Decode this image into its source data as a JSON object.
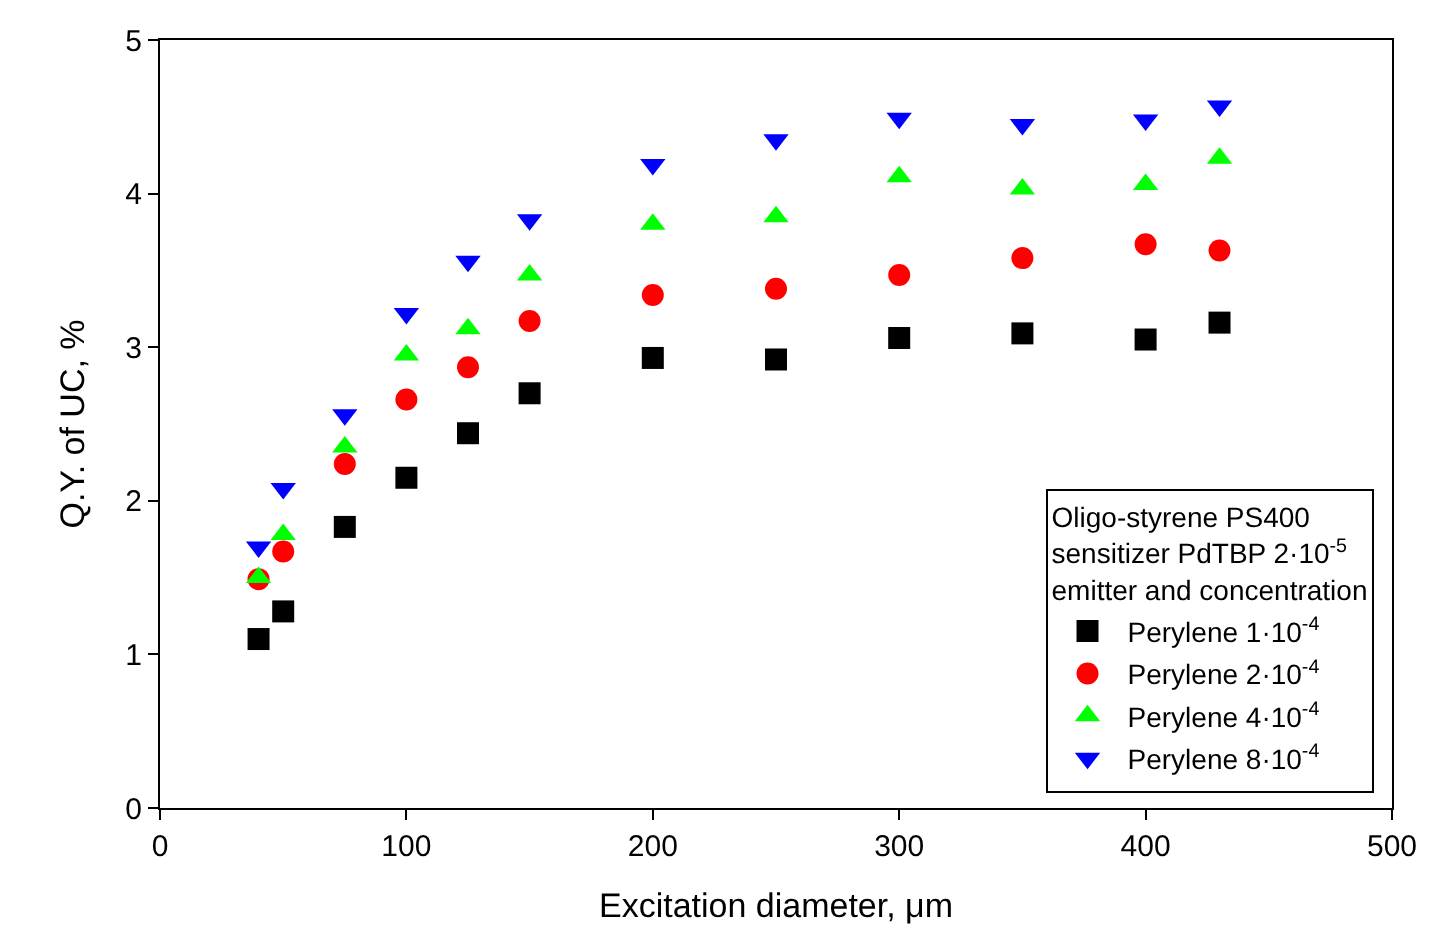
{
  "chart_data": {
    "type": "scatter",
    "xlabel": "Excitation diameter, μm",
    "ylabel": "Q.Y. of UC, %",
    "legend_title": "Oligo-styrene PS400\nsensitizer PdTBP 2·10$^{-5}$\nemitter and concentration",
    "x": [
      40,
      50,
      75,
      100,
      125,
      150,
      200,
      250,
      300,
      350,
      400,
      430
    ],
    "series": [
      {
        "name": "Perylene 1·10$^{-4}$",
        "color": "#000000",
        "marker": "square",
        "values": [
          1.1,
          1.28,
          1.83,
          2.15,
          2.44,
          2.7,
          2.93,
          2.92,
          3.06,
          3.09,
          3.05,
          3.16
        ]
      },
      {
        "name": "Perylene 2·10$^{-4}$",
        "color": "#ff0000",
        "marker": "circle",
        "values": [
          1.49,
          1.67,
          2.24,
          2.66,
          2.87,
          3.17,
          3.34,
          3.38,
          3.47,
          3.58,
          3.67,
          3.63
        ]
      },
      {
        "name": "Perylene 4·10$^{-4}$",
        "color": "#00ff00",
        "marker": "triangle",
        "values": [
          1.5,
          1.78,
          2.35,
          2.95,
          3.12,
          3.47,
          3.8,
          3.85,
          4.11,
          4.03,
          4.06,
          4.23
        ]
      },
      {
        "name": "Perylene 8·10$^{-4}$",
        "color": "#0000ff",
        "marker": "triangle-down",
        "values": [
          1.7,
          2.08,
          2.56,
          3.22,
          3.56,
          3.83,
          4.19,
          4.35,
          4.49,
          4.45,
          4.48,
          4.57
        ]
      }
    ],
    "xlim": [
      0,
      500
    ],
    "xticks": [
      0,
      100,
      200,
      300,
      400,
      500
    ],
    "ylim": [
      0,
      5
    ],
    "yticks": [
      0,
      1,
      2,
      3,
      4,
      5
    ],
    "legend": "bottom right"
  }
}
